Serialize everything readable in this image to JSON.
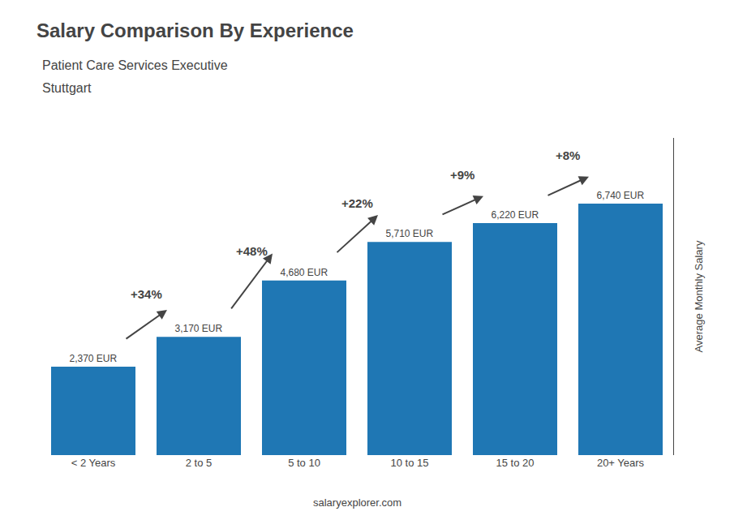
{
  "chart_data": {
    "type": "bar",
    "title": "Salary Comparison By Experience",
    "subtitle": [
      "Patient Care Services Executive",
      "Stuttgart"
    ],
    "categories": [
      "< 2 Years",
      "2 to 5",
      "5 to 10",
      "10 to 15",
      "15 to 20",
      "20+ Years"
    ],
    "values": [
      2370,
      3170,
      4680,
      5710,
      6220,
      6740
    ],
    "value_labels": [
      "2,370 EUR",
      "3,170 EUR",
      "4,680 EUR",
      "5,710 EUR",
      "6,220 EUR",
      "6,740 EUR"
    ],
    "data_labels": true,
    "ylabel": "Average Monthly Salary",
    "ylim": [
      0,
      8500
    ],
    "tick_labels": "x",
    "grid": false,
    "annotations": [
      {
        "text": "+34%",
        "from": "< 2 Years",
        "to": "2 to 5"
      },
      {
        "text": "+48%",
        "from": "2 to 5",
        "to": "5 to 10"
      },
      {
        "text": "+22%",
        "from": "5 to 10",
        "to": "10 to 15"
      },
      {
        "text": "+9%",
        "from": "10 to 15",
        "to": "15 to 20"
      },
      {
        "text": "+8%",
        "from": "15 to 20",
        "to": "20+ Years"
      },
      {
        "text": "salaryexplorer.com"
      }
    ]
  }
}
